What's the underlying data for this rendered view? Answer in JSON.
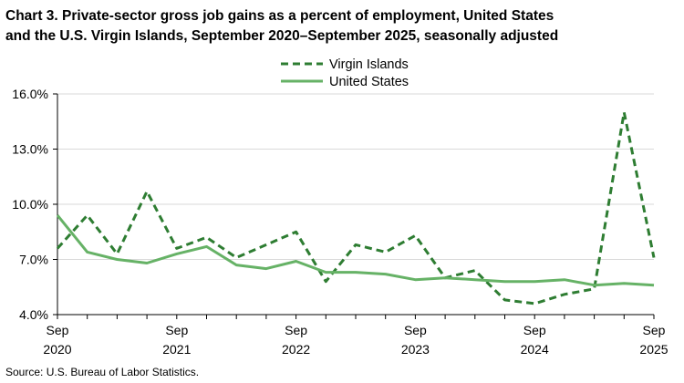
{
  "chart_data": {
    "type": "line",
    "title_line1": "Chart 3. Private-sector gross job gains as a percent of employment, United States",
    "title_line2": "and the U.S. Virgin Islands, September 2020–September 2025, seasonally adjusted",
    "source": "Source: U.S. Bureau of Labor Statistics.",
    "ylim": [
      4.0,
      16.0
    ],
    "y_ticks": [
      "4.0%",
      "7.0%",
      "10.0%",
      "13.0%",
      "16.0%"
    ],
    "y_tick_values": [
      4.0,
      7.0,
      10.0,
      13.0,
      16.0
    ],
    "x_tick_labels": [
      {
        "month": "Sep",
        "year": "2020",
        "index": 0
      },
      {
        "month": "Sep",
        "year": "2021",
        "index": 4
      },
      {
        "month": "Sep",
        "year": "2022",
        "index": 8
      },
      {
        "month": "Sep",
        "year": "2023",
        "index": 12
      },
      {
        "month": "Sep",
        "year": "2024",
        "index": 16
      },
      {
        "month": "Sep",
        "year": "2025",
        "index": 20
      }
    ],
    "x": [
      "Sep 2020",
      "Dec 2020",
      "Mar 2021",
      "Jun 2021",
      "Sep 2021",
      "Dec 2021",
      "Mar 2022",
      "Jun 2022",
      "Sep 2022",
      "Dec 2022",
      "Mar 2023",
      "Jun 2023",
      "Sep 2023",
      "Dec 2023",
      "Mar 2024",
      "Jun 2024",
      "Sep 2024",
      "Dec 2024",
      "Mar 2025",
      "Jun 2025",
      "Sep 2025"
    ],
    "grid": "horizontal",
    "legend_position": "top-center",
    "series": [
      {
        "name": "Virgin Islands",
        "style": "dashed",
        "color": "#2e7d32",
        "values": [
          7.6,
          9.4,
          7.3,
          10.7,
          7.6,
          8.2,
          7.1,
          7.8,
          8.5,
          5.8,
          7.8,
          7.4,
          8.3,
          6.0,
          6.4,
          4.8,
          4.6,
          5.1,
          5.4,
          15.0,
          7.1
        ]
      },
      {
        "name": "United States",
        "style": "solid",
        "color": "#66b266",
        "values": [
          9.4,
          7.4,
          7.0,
          6.8,
          7.3,
          7.7,
          6.7,
          6.5,
          6.9,
          6.3,
          6.3,
          6.2,
          5.9,
          6.0,
          5.9,
          5.8,
          5.8,
          5.9,
          5.6,
          5.7,
          5.6
        ]
      }
    ]
  }
}
